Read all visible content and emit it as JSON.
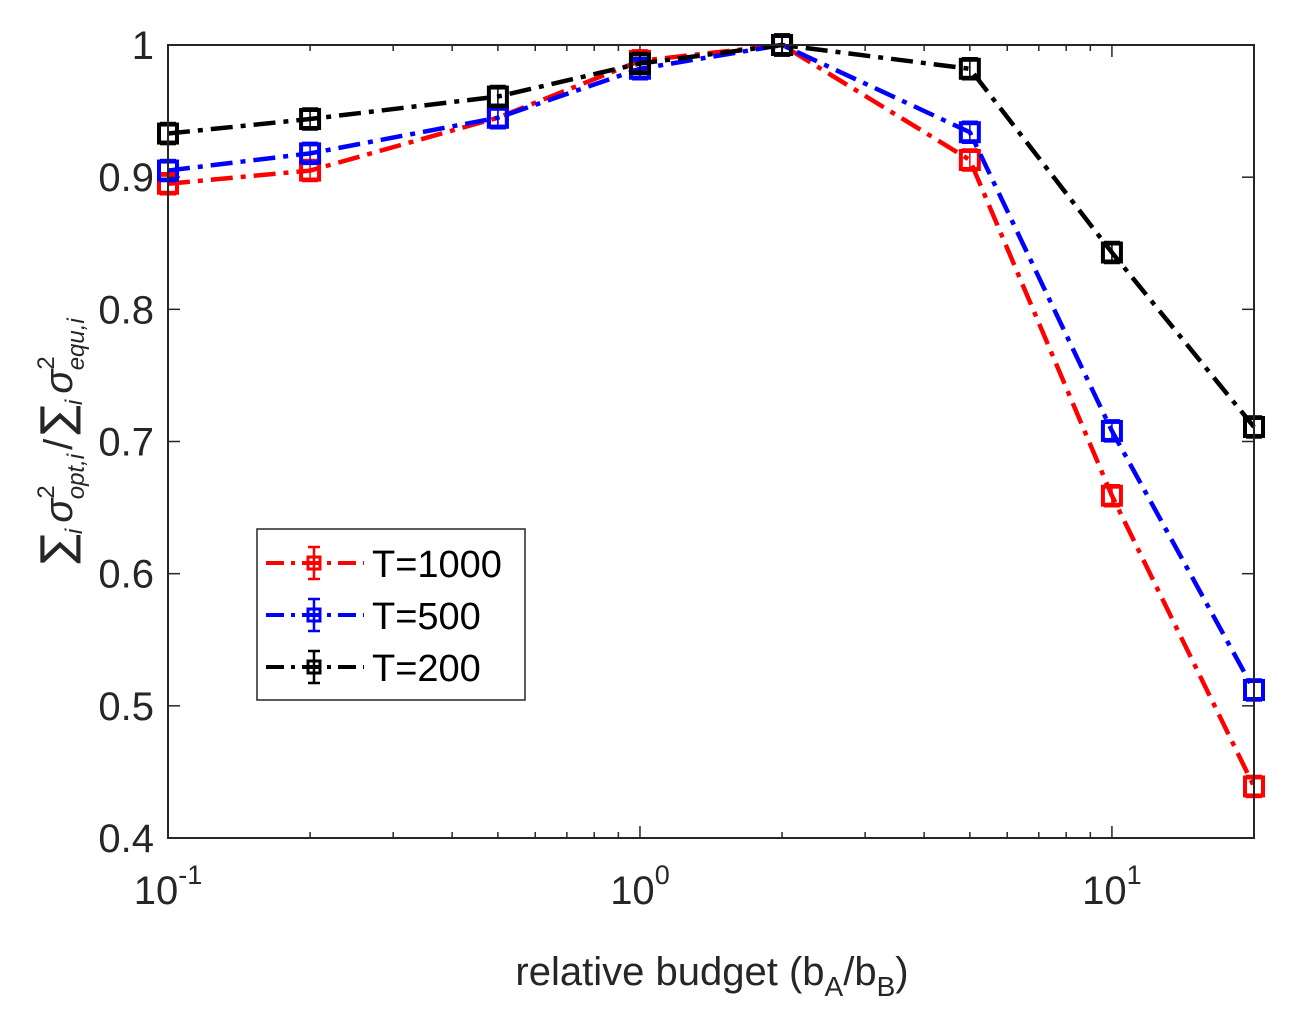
{
  "chart_data": {
    "type": "line",
    "x_scale": "log",
    "x": [
      0.1,
      0.2,
      0.5,
      1,
      2,
      5,
      10,
      20
    ],
    "xlim": [
      0.1,
      20
    ],
    "ylim": [
      0.4,
      1.0
    ],
    "xticks": [
      {
        "value": 0.1,
        "base": "10",
        "exp": "-1"
      },
      {
        "value": 1,
        "base": "10",
        "exp": "0"
      },
      {
        "value": 10,
        "base": "10",
        "exp": "1"
      }
    ],
    "yticks": [
      {
        "value": 0.4,
        "label": "0.4"
      },
      {
        "value": 0.5,
        "label": "0.5"
      },
      {
        "value": 0.6,
        "label": "0.6"
      },
      {
        "value": 0.7,
        "label": "0.7"
      },
      {
        "value": 0.8,
        "label": "0.8"
      },
      {
        "value": 0.9,
        "label": "0.9"
      },
      {
        "value": 1.0,
        "label": "1"
      }
    ],
    "xlabel": {
      "main": "relative budget (b",
      "sub1": "A",
      "mid": "/b",
      "sub2": "B",
      "end": ")"
    },
    "ylabel": {
      "sum": "∑",
      "i": "i",
      "sigma": "σ",
      "sq": "2",
      "opt": "opt,i",
      "slash": "/",
      "equ": "equ,i"
    },
    "legend_position": "lower-left",
    "grid": false,
    "series": [
      {
        "name": "T=1000",
        "color": "#ff0000",
        "values": [
          0.895,
          0.905,
          0.945,
          0.988,
          1.0,
          0.913,
          0.659,
          0.439
        ]
      },
      {
        "name": "T=500",
        "color": "#0000ff",
        "values": [
          0.905,
          0.918,
          0.945,
          0.982,
          1.0,
          0.934,
          0.708,
          0.512
        ]
      },
      {
        "name": "T=200",
        "color": "#000000",
        "values": [
          0.933,
          0.944,
          0.961,
          0.986,
          1.0,
          0.982,
          0.843,
          0.711
        ]
      }
    ]
  }
}
